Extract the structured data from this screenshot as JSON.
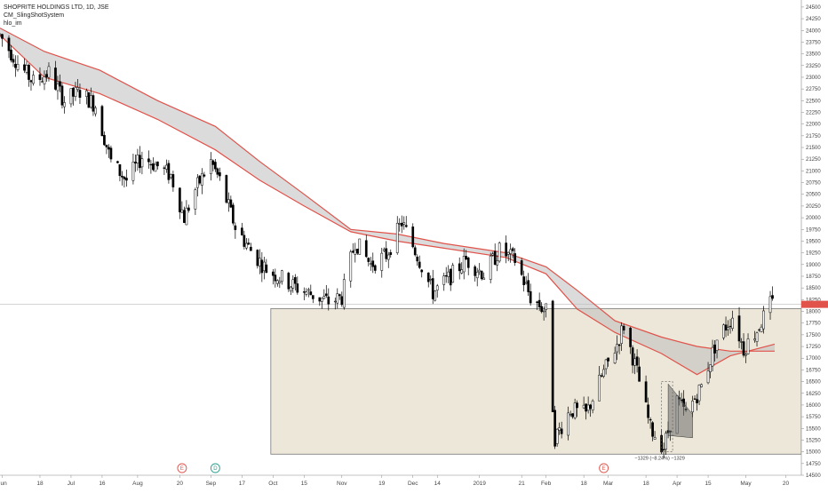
{
  "legend": {
    "line1": "SHOPRITE HOLDINGS LTD, 1D, JSE",
    "line2": "CM_SlingShotSystem",
    "line3": "hlo_im"
  },
  "measure_label": "−1329 (−8.24%) −1329",
  "events": [
    {
      "label": "E",
      "color": "#e0524a",
      "date": "2018-08-21"
    },
    {
      "label": "D",
      "color": "#2a9d8f",
      "date": "2018-09-05"
    },
    {
      "label": "E",
      "color": "#e0524a",
      "date": "2019-02-27"
    }
  ],
  "chart_data": {
    "type": "candlestick",
    "instrument": "SHOPRITE HOLDINGS LTD",
    "interval": "1D",
    "exchange": "JSE",
    "indicators": [
      "CM_SlingShotSystem",
      "hlo_im"
    ],
    "y_axis": {
      "side": "right",
      "ylim": [
        14500,
        24650
      ],
      "ticks": [
        14500,
        14750,
        15000,
        15250,
        15500,
        15750,
        16000,
        16250,
        16500,
        16750,
        17000,
        17250,
        17500,
        17750,
        18000,
        18250,
        18500,
        18750,
        19000,
        19250,
        19500,
        19750,
        20000,
        20250,
        20500,
        20750,
        21000,
        21250,
        21500,
        21750,
        22000,
        22250,
        22500,
        22750,
        23000,
        23250,
        23500,
        23750,
        24000,
        24250,
        24500
      ]
    },
    "x_axis": {
      "ticks": [
        {
          "label": "Jun",
          "date": "2018-06-01"
        },
        {
          "label": "18",
          "date": "2018-06-18"
        },
        {
          "label": "Jul",
          "date": "2018-07-02"
        },
        {
          "label": "16",
          "date": "2018-07-16"
        },
        {
          "label": "Aug",
          "date": "2018-08-01"
        },
        {
          "label": "20",
          "date": "2018-08-20"
        },
        {
          "label": "Sep",
          "date": "2018-09-03"
        },
        {
          "label": "17",
          "date": "2018-09-17"
        },
        {
          "label": "Oct",
          "date": "2018-10-01"
        },
        {
          "label": "15",
          "date": "2018-10-15"
        },
        {
          "label": "Nov",
          "date": "2018-11-01"
        },
        {
          "label": "19",
          "date": "2018-11-19"
        },
        {
          "label": "Dec",
          "date": "2018-12-03"
        },
        {
          "label": "14",
          "date": "2018-12-14"
        },
        {
          "label": "2019",
          "date": "2019-01-02"
        },
        {
          "label": "21",
          "date": "2019-01-21"
        },
        {
          "label": "Feb",
          "date": "2019-02-01"
        },
        {
          "label": "18",
          "date": "2019-02-18"
        },
        {
          "label": "Mar",
          "date": "2019-03-01"
        },
        {
          "label": "18",
          "date": "2019-03-18"
        },
        {
          "label": "Apr",
          "date": "2019-04-01"
        },
        {
          "label": "15",
          "date": "2019-04-15"
        },
        {
          "label": "May",
          "date": "2019-05-02"
        },
        {
          "label": "20",
          "date": "2019-05-20"
        }
      ]
    },
    "range": {
      "start": "2018-05-31",
      "end": "2019-05-27"
    },
    "price_path": [
      [
        "2018-05-31",
        23900
      ],
      [
        "2018-06-08",
        23300
      ],
      [
        "2018-06-15",
        22900
      ],
      [
        "2018-06-22",
        23100
      ],
      [
        "2018-06-29",
        22500
      ],
      [
        "2018-07-06",
        22700
      ],
      [
        "2018-07-13",
        22400
      ],
      [
        "2018-07-20",
        21200
      ],
      [
        "2018-07-27",
        20800
      ],
      [
        "2018-08-03",
        21300
      ],
      [
        "2018-08-10",
        21100
      ],
      [
        "2018-08-16",
        20900
      ],
      [
        "2018-08-22",
        20000
      ],
      [
        "2018-08-27",
        20600
      ],
      [
        "2018-09-03",
        21200
      ],
      [
        "2018-09-07",
        20800
      ],
      [
        "2018-09-14",
        19800
      ],
      [
        "2018-09-21",
        19300
      ],
      [
        "2018-09-28",
        18900
      ],
      [
        "2018-10-05",
        18700
      ],
      [
        "2018-10-12",
        18500
      ],
      [
        "2018-10-19",
        18350
      ],
      [
        "2018-10-26",
        18200
      ],
      [
        "2018-11-01",
        18300
      ],
      [
        "2018-11-07",
        19500
      ],
      [
        "2018-11-14",
        19000
      ],
      [
        "2018-11-21",
        19200
      ],
      [
        "2018-11-28",
        19900
      ],
      [
        "2018-12-05",
        19200
      ],
      [
        "2018-12-12",
        18400
      ],
      [
        "2018-12-19",
        18700
      ],
      [
        "2018-12-27",
        19100
      ],
      [
        "2019-01-04",
        18800
      ],
      [
        "2019-01-11",
        19300
      ],
      [
        "2019-01-18",
        19100
      ],
      [
        "2019-01-25",
        18300
      ],
      [
        "2019-02-01",
        18000
      ],
      [
        "2019-02-05",
        15300
      ],
      [
        "2019-02-12",
        15900
      ],
      [
        "2019-02-19",
        15800
      ],
      [
        "2019-02-26",
        16600
      ],
      [
        "2019-03-05",
        17300
      ],
      [
        "2019-03-08",
        17700
      ],
      [
        "2019-03-14",
        16700
      ],
      [
        "2019-03-20",
        15500
      ],
      [
        "2019-03-26",
        15100
      ],
      [
        "2019-04-01",
        16100
      ],
      [
        "2019-04-05",
        15800
      ],
      [
        "2019-04-12",
        16400
      ],
      [
        "2019-04-19",
        17400
      ],
      [
        "2019-04-26",
        17900
      ],
      [
        "2019-05-01",
        17200
      ],
      [
        "2019-05-07",
        17600
      ],
      [
        "2019-05-13",
        18150
      ]
    ],
    "last_price": 18150,
    "ema_fast_path": [
      [
        "2018-05-31",
        23900
      ],
      [
        "2018-06-20",
        23000
      ],
      [
        "2018-07-15",
        22650
      ],
      [
        "2018-08-10",
        22100
      ],
      [
        "2018-09-05",
        21450
      ],
      [
        "2018-09-25",
        20800
      ],
      [
        "2018-10-15",
        20250
      ],
      [
        "2018-11-05",
        19700
      ],
      [
        "2018-11-26",
        19500
      ],
      [
        "2018-12-17",
        19350
      ],
      [
        "2019-01-14",
        19150
      ],
      [
        "2019-02-01",
        18800
      ],
      [
        "2019-02-15",
        18050
      ],
      [
        "2019-03-04",
        17550
      ],
      [
        "2019-03-25",
        17100
      ],
      [
        "2019-04-10",
        16650
      ],
      [
        "2019-04-25",
        17050
      ],
      [
        "2019-05-15",
        17300
      ]
    ],
    "ema_slow_path": [
      [
        "2018-05-31",
        24050
      ],
      [
        "2018-06-20",
        23550
      ],
      [
        "2018-07-15",
        23150
      ],
      [
        "2018-08-10",
        22500
      ],
      [
        "2018-09-05",
        21950
      ],
      [
        "2018-09-25",
        21200
      ],
      [
        "2018-10-15",
        20500
      ],
      [
        "2018-11-05",
        19750
      ],
      [
        "2018-11-26",
        19650
      ],
      [
        "2018-12-17",
        19450
      ],
      [
        "2019-01-14",
        19250
      ],
      [
        "2019-02-01",
        18950
      ],
      [
        "2019-02-15",
        18450
      ],
      [
        "2019-03-04",
        17800
      ],
      [
        "2019-03-25",
        17450
      ],
      [
        "2019-04-10",
        17250
      ],
      [
        "2019-04-25",
        17150
      ],
      [
        "2019-05-15",
        17150
      ]
    ],
    "zone": {
      "x0": "2018-09-30",
      "x1": "2019-05-27",
      "y0": 14950,
      "y1": 18060,
      "color": "#ece7d8",
      "border": "#777777"
    },
    "horizontal_line": {
      "value": 18150,
      "color": "#bbbbbb"
    },
    "channel": {
      "upper": [
        [
          "2019-03-28",
          16450
        ],
        [
          "2019-04-08",
          15800
        ]
      ],
      "lower": [
        [
          "2019-03-28",
          15350
        ],
        [
          "2019-04-08",
          15300
        ]
      ]
    },
    "measure": {
      "x0": "2019-03-25",
      "x1": "2019-03-30",
      "y_top": 16500,
      "y_bottom": 15000
    },
    "colors": {
      "up_fill": "#ffffff",
      "down_fill": "#000000",
      "wick": "#000000",
      "ema_fast": "#e0524a",
      "ema_slow": "#e0524a",
      "band_fill": "#bdbdbd"
    },
    "grid": false,
    "legend_position": "top-left"
  }
}
